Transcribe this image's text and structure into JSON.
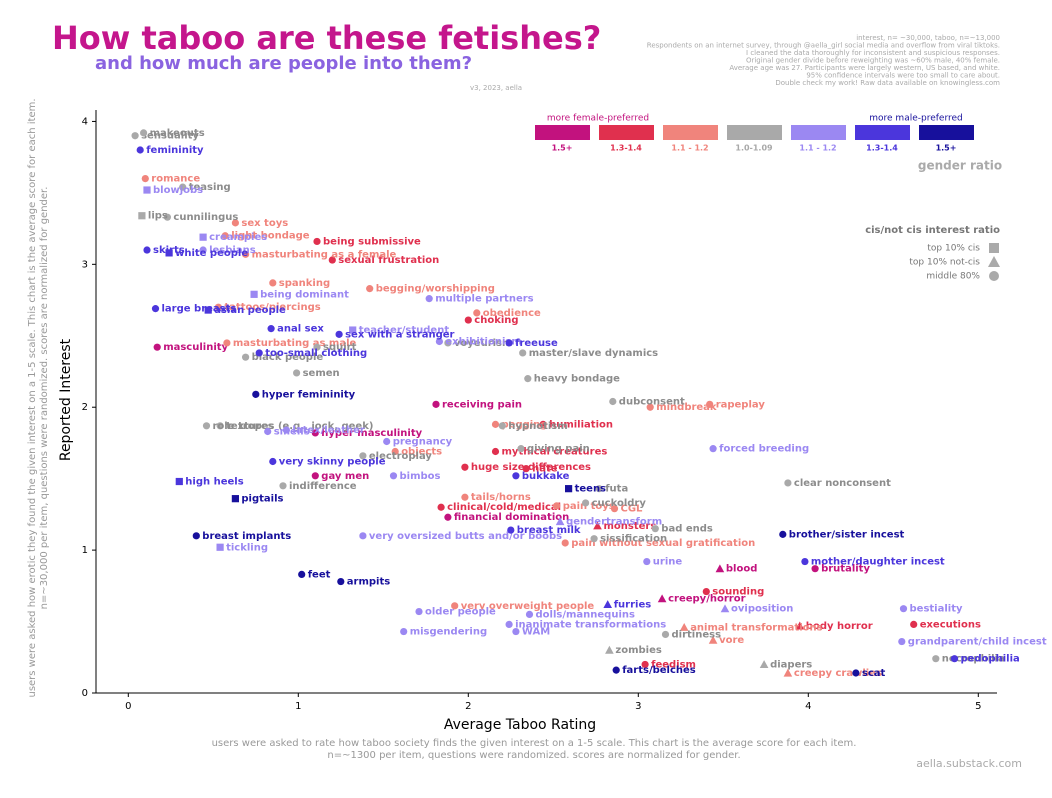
{
  "chart_data": {
    "type": "scatter",
    "title": "How taboo are these fetishes?",
    "subtitle": "and how much are people into them?",
    "version": "v3, 2023, aella",
    "notes": [
      "interest, n= ~30,000, taboo, n=~13,000",
      "Respondents on an internet survey, through @aella_girl social media and overflow from viral tiktoks.",
      "I cleaned the data thoroughly for inconsistent and suspicious responses.",
      "Original gender divide before reweighting was ~60% male, 40% female.",
      "Average age was 27. Participants were largely western, US based, and white.",
      "95% confidence intervals were too small to care about.",
      "Double check my work! Raw data available on knowingless.com"
    ],
    "x_label": "Average Taboo Rating",
    "y_label": "Reported Interest",
    "x_note": [
      "users were asked to rate how taboo society finds the given interest on a 1-5 scale. This chart is the average score for each item.",
      "n=~1300 per item, questions were randomized. scores are normalized for gender."
    ],
    "y_note": [
      "users were asked how erotic they found the given interest on a 1-5 scale. This chart is the average score for each item.",
      "n=~30,000 per item, questions were randomized. scores are normalized for gender."
    ],
    "source": "aella.substack.com",
    "xlim": [
      -0.19,
      5.11
    ],
    "ylim": [
      0,
      4.08
    ],
    "xticks": [
      0,
      1,
      2,
      3,
      4,
      5
    ],
    "yticks": [
      0,
      1,
      2,
      3,
      4
    ],
    "legend": {
      "title": "gender ratio",
      "female_label": "more female-preferred",
      "male_label": "more male-preferred"
    },
    "shape_legend": {
      "title": "cis/not cis interest ratio",
      "entries": [
        {
          "name": "top 10% cis",
          "shape": "square"
        },
        {
          "name": "top 10% not-cis",
          "shape": "triangle"
        },
        {
          "name": "middle 80%",
          "shape": "circle"
        }
      ]
    },
    "series": [
      {
        "name": "1.5+",
        "color": "#c2127e",
        "labels": [
          "masculinity",
          "hyper masculinity",
          "gay men",
          "receiving pain",
          "financial domination",
          "blood",
          "creepy/horror",
          "brutality"
        ],
        "x": [
          0.17,
          1.1,
          1.1,
          1.81,
          1.88,
          3.48,
          3.14,
          4.04
        ],
        "values": [
          2.42,
          1.82,
          1.52,
          2.02,
          1.23,
          0.87,
          0.66,
          0.87
        ],
        "shapes": [
          "circle",
          "circle",
          "circle",
          "circle",
          "circle",
          "triangle",
          "triangle",
          "circle"
        ]
      },
      {
        "name": "1.3-1.4",
        "color": "#e0304e",
        "labels": [
          "being submissive",
          "sexual frustration",
          "choking",
          "humiliation",
          "huge size differences",
          "mythical creatures",
          "hate",
          "clinical/cold/medical",
          "monsters",
          "sounding",
          "body horror",
          "executions",
          "feedism"
        ],
        "x": [
          1.11,
          1.2,
          2.0,
          2.44,
          1.98,
          2.16,
          2.34,
          1.84,
          2.76,
          3.4,
          3.95,
          4.62,
          3.04
        ],
        "values": [
          3.16,
          3.03,
          2.61,
          1.88,
          1.58,
          1.69,
          1.57,
          1.3,
          1.17,
          0.71,
          0.47,
          0.48,
          0.2
        ],
        "shapes": [
          "circle",
          "circle",
          "circle",
          "circle",
          "circle",
          "circle",
          "circle",
          "circle",
          "triangle",
          "circle",
          "triangle",
          "circle",
          "circle"
        ]
      },
      {
        "name": "1.1 - 1.2",
        "color": "#f0847c",
        "labels": [
          "romance",
          "sex toys",
          "light bondage",
          "masturbating as a female",
          "spanking",
          "tattoos/piercings",
          "masturbating as male",
          "begging/worshipping",
          "obedience",
          "pegging",
          "objects",
          "tails/horns",
          "pain toys",
          "CGL",
          "mindbreak",
          "rapeplay",
          "pain without sexual gratification",
          "very overweight people",
          "animal transformations",
          "vore",
          "creepy crawlies"
        ],
        "x": [
          0.1,
          0.63,
          0.57,
          0.69,
          0.85,
          0.53,
          0.58,
          1.42,
          2.05,
          2.16,
          1.57,
          1.98,
          2.52,
          2.86,
          3.07,
          3.42,
          2.57,
          1.92,
          3.27,
          3.44,
          3.88
        ],
        "values": [
          3.6,
          3.29,
          3.2,
          3.07,
          2.87,
          2.7,
          2.45,
          2.83,
          2.66,
          1.88,
          1.69,
          1.37,
          1.31,
          1.29,
          2.0,
          2.02,
          1.05,
          0.61,
          0.46,
          0.37,
          0.14
        ],
        "shapes": [
          "circle",
          "circle",
          "circle",
          "circle",
          "circle",
          "circle",
          "circle",
          "circle",
          "circle",
          "circle",
          "circle",
          "circle",
          "circle",
          "circle",
          "circle",
          "circle",
          "circle",
          "circle",
          "triangle",
          "triangle",
          "triangle"
        ]
      },
      {
        "name": "1.0-1.09",
        "color": "#a9a9a9",
        "labels": [
          "sensuality",
          "makeouts",
          "teasing",
          "cunnilingus",
          "lips",
          "black people",
          "squirt",
          "semen",
          "textures",
          "role tropes (e.g., jock, geek)",
          "electroplay",
          "indifference",
          "voyeurism",
          "master/slave dynamics",
          "heavy bondage",
          "hypnotism",
          "giving pain",
          "dubconsent",
          "futa",
          "cuckoldry",
          "sissification",
          "bad ends",
          "clear nonconsent",
          "dirtiness",
          "zombies",
          "diapers",
          "necrophilia"
        ],
        "x": [
          0.04,
          0.09,
          0.32,
          0.23,
          0.08,
          0.69,
          1.11,
          0.99,
          0.54,
          0.46,
          1.38,
          0.91,
          1.88,
          2.32,
          2.35,
          2.2,
          2.31,
          2.85,
          2.77,
          2.69,
          2.74,
          3.1,
          3.88,
          3.16,
          2.83,
          3.74,
          4.75
        ],
        "values": [
          3.9,
          3.92,
          3.54,
          3.33,
          3.34,
          2.35,
          2.42,
          2.24,
          1.87,
          1.87,
          1.66,
          1.45,
          2.45,
          2.38,
          2.2,
          1.87,
          1.71,
          2.04,
          1.43,
          1.33,
          1.08,
          1.15,
          1.47,
          0.41,
          0.3,
          0.2,
          0.24
        ],
        "shapes": [
          "circle",
          "circle",
          "circle",
          "circle",
          "square",
          "circle",
          "circle",
          "circle",
          "circle",
          "circle",
          "circle",
          "circle",
          "circle",
          "circle",
          "circle",
          "circle",
          "circle",
          "circle",
          "circle",
          "circle",
          "circle",
          "circle",
          "circle",
          "circle",
          "triangle",
          "triangle",
          "circle"
        ]
      },
      {
        "name": "1.1 - 1.2",
        "color": "#9b88f2",
        "labels": [
          "blowjobs",
          "creampies",
          "lesbians",
          "being dominant",
          "teacher/student",
          "multiple partners",
          "exhibitionism",
          "latex/leather",
          "smells",
          "pregnancy",
          "bimbos",
          "very oversized butts and/or boobs",
          "tickling",
          "gendertransform",
          "urine",
          "forced breeding",
          "oviposition",
          "older people",
          "misgendering",
          "dolls/mannequins",
          "inanimate transformations",
          "WAM",
          "bestiality",
          "grandparent/child incest"
        ],
        "x": [
          0.11,
          0.44,
          0.44,
          0.74,
          1.32,
          1.77,
          1.83,
          0.93,
          0.82,
          1.52,
          1.56,
          1.38,
          0.54,
          2.54,
          3.05,
          3.44,
          3.51,
          1.71,
          1.62,
          2.36,
          2.24,
          2.28,
          4.56,
          4.55
        ],
        "values": [
          3.52,
          3.19,
          3.1,
          2.79,
          2.54,
          2.76,
          2.46,
          1.84,
          1.83,
          1.76,
          1.52,
          1.1,
          1.02,
          1.2,
          0.92,
          1.71,
          0.59,
          0.57,
          0.43,
          0.55,
          0.48,
          0.43,
          0.59,
          0.36
        ],
        "shapes": [
          "square",
          "square",
          "circle",
          "square",
          "square",
          "circle",
          "circle",
          "circle",
          "circle",
          "circle",
          "circle",
          "circle",
          "square",
          "triangle",
          "circle",
          "circle",
          "triangle",
          "circle",
          "circle",
          "circle",
          "circle",
          "circle",
          "circle",
          "circle"
        ]
      },
      {
        "name": "1.3-1.4",
        "color": "#4b36dc",
        "labels": [
          "femininity",
          "skirts",
          "white people",
          "asian people",
          "anal sex",
          "sex with a stranger",
          "too-small clothing",
          "very skinny people",
          "high heels",
          "large breasts",
          "freeuse",
          "bukkake",
          "breast milk",
          "furries",
          "pedophilia",
          "mother/daughter incest"
        ],
        "x": [
          0.07,
          0.11,
          0.24,
          0.47,
          0.84,
          1.24,
          0.77,
          0.85,
          0.3,
          0.16,
          2.24,
          2.28,
          2.25,
          2.82,
          4.86,
          3.98
        ],
        "values": [
          3.8,
          3.1,
          3.08,
          2.68,
          2.55,
          2.51,
          2.38,
          1.62,
          1.48,
          2.69,
          2.45,
          1.52,
          1.14,
          0.62,
          0.24,
          0.92
        ],
        "shapes": [
          "circle",
          "circle",
          "square",
          "square",
          "circle",
          "circle",
          "circle",
          "circle",
          "square",
          "circle",
          "circle",
          "circle",
          "circle",
          "triangle",
          "circle",
          "circle"
        ]
      },
      {
        "name": "1.5+",
        "color": "#17109c",
        "labels": [
          "hyper femininity",
          "pigtails",
          "breast implants",
          "feet",
          "armpits",
          "teens",
          "brother/sister incest",
          "farts/belches",
          "scat"
        ],
        "x": [
          0.75,
          0.63,
          0.4,
          1.02,
          1.25,
          2.59,
          3.85,
          2.87,
          4.28
        ],
        "values": [
          2.09,
          1.36,
          1.1,
          0.83,
          0.78,
          1.43,
          1.11,
          0.16,
          0.14
        ],
        "shapes": [
          "circle",
          "square",
          "circle",
          "circle",
          "circle",
          "square",
          "circle",
          "circle",
          "circle"
        ]
      }
    ]
  }
}
